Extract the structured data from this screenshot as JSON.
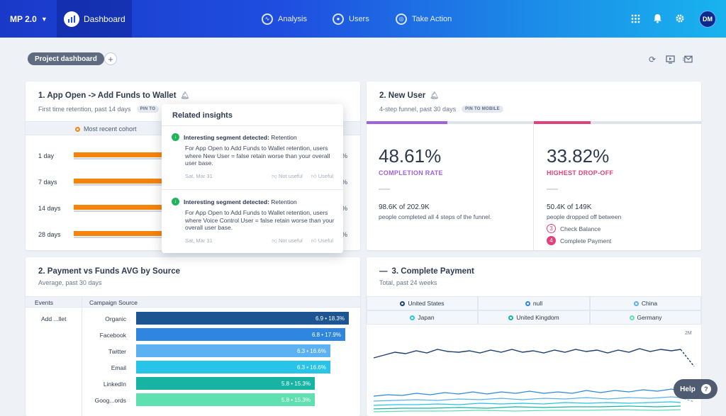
{
  "topbar": {
    "project": "MP 2.0",
    "dashboard_tab": "Dashboard",
    "nav": [
      {
        "label": "Analysis",
        "icon": "pulse-icon"
      },
      {
        "label": "Users",
        "icon": "user-icon"
      },
      {
        "label": "Take Action",
        "icon": "target-icon"
      }
    ],
    "avatar": "DM"
  },
  "subbar": {
    "pill": "Project dashboard"
  },
  "card1": {
    "title": "1. App Open -> Add Funds to Wallet",
    "subtitle": "First time retention, past 14 days",
    "chip": "PIN TO",
    "cohort_label": "Most recent cohort",
    "rows": [
      {
        "label": "1 day",
        "pct": "%"
      },
      {
        "label": "7 days",
        "pct": "%"
      },
      {
        "label": "14 days",
        "pct": "%"
      },
      {
        "label": "28 days",
        "pct": "%"
      }
    ]
  },
  "popover": {
    "title": "Related insights",
    "items": [
      {
        "head_bold": "Interesting segment detected:",
        "head_rest": "Retention",
        "body": "For App Open to Add Funds to Wallet retention, users where New User = false retain worse than your overall user base.",
        "date": "Sat, Mar 31",
        "not_useful": "Not useful",
        "useful": "Useful"
      },
      {
        "head_bold": "Interesting segment detected:",
        "head_rest": "Retention",
        "body": "For App Open to Add Funds to Wallet retention, users where Voice Control User = false retain worse than your overall user base.",
        "date": "Sat, Mar 31",
        "not_useful": "Not useful",
        "useful": "Useful"
      }
    ]
  },
  "card2": {
    "title": "2. New User",
    "subtitle": "4-step funnel, past 30 days",
    "chip": "PIN TO MOBILE",
    "left": {
      "value": "48.61%",
      "label": "COMPLETION RATE",
      "main": "98.6K of 202.9K",
      "sub": "people completed all 4 steps of the funnel."
    },
    "right": {
      "value": "33.82%",
      "label": "HIGHEST DROP-OFF",
      "main": "50.4K of 149K",
      "sub": "people dropped off between",
      "steps": [
        {
          "num": "3",
          "label": "Check Balance"
        },
        {
          "num": "4",
          "label": "Complete Payment"
        }
      ]
    },
    "colors": {
      "completion": "#a160dc",
      "dropoff": "#e2407a"
    }
  },
  "card3": {
    "title": "2. Payment vs Funds AVG by Source",
    "subtitle": "Average, past 30 days",
    "col_events": "Events",
    "col_source": "Campaign Source",
    "event": "Add ...llet",
    "rows": [
      {
        "label": "Organic",
        "value": "6.9 • 18.3%",
        "color": "#1d5592"
      },
      {
        "label": "Facebook",
        "value": "6.8 • 17.9%",
        "color": "#2f86e0"
      },
      {
        "label": "Twitter",
        "value": "6.3 • 16.6%",
        "color": "#5cb1f2"
      },
      {
        "label": "Email",
        "value": "6.3 • 16.6%",
        "color": "#27c3e8"
      },
      {
        "label": "LinkedIn",
        "value": "5.8 • 15.3%",
        "color": "#17b3a3"
      },
      {
        "label": "Goog...ords",
        "value": "5.8 • 15.3%",
        "color": "#5ee0b0"
      }
    ]
  },
  "card4": {
    "title": "3. Complete Payment",
    "subtitle": "Total, past 24 weeks",
    "legend": [
      {
        "label": "United States",
        "color": "#1d3f73"
      },
      {
        "label": "null",
        "color": "#2f86e0"
      },
      {
        "label": "China",
        "color": "#5cb1f2"
      },
      {
        "label": "Japan",
        "color": "#27c3e8"
      },
      {
        "label": "United Kingdom",
        "color": "#17b3a3"
      },
      {
        "label": "Germany",
        "color": "#5ee0b0"
      }
    ],
    "y_max_label": "2M"
  },
  "help": {
    "label": "Help"
  }
}
